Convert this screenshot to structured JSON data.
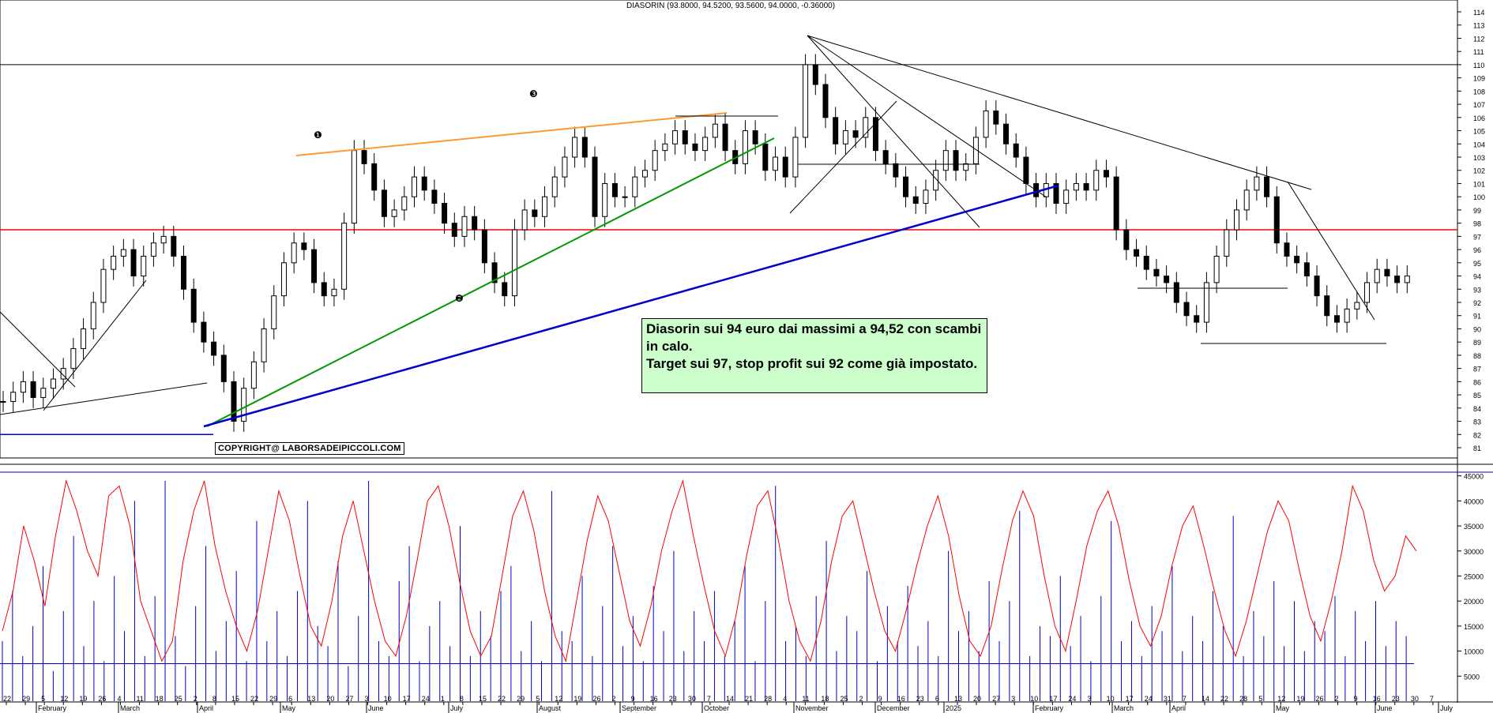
{
  "chart_data": [
    {
      "type": "candlestick",
      "title": "DIASORIN (93.8000, 94.5200, 93.5600, 94.0000, -0.36000)",
      "ylim": [
        80,
        115
      ],
      "y_ticks": [
        81,
        82,
        83,
        84,
        85,
        86,
        87,
        88,
        89,
        90,
        91,
        92,
        93,
        94,
        95,
        96,
        97,
        98,
        99,
        100,
        101,
        102,
        103,
        104,
        105,
        106,
        107,
        108,
        109,
        110,
        111,
        112,
        113,
        114
      ],
      "x_day_ticks": [
        "22",
        "29",
        "5",
        "12",
        "19",
        "26",
        "4",
        "11",
        "18",
        "25",
        "2",
        "8",
        "15",
        "22",
        "29",
        "6",
        "13",
        "20",
        "27",
        "3",
        "10",
        "17",
        "24",
        "1",
        "8",
        "15",
        "22",
        "29",
        "5",
        "12",
        "19",
        "26",
        "2",
        "9",
        "16",
        "23",
        "30",
        "7",
        "14",
        "21",
        "28",
        "4",
        "11",
        "18",
        "25",
        "2",
        "9",
        "16",
        "23",
        "6",
        "13",
        "20",
        "27",
        "3",
        "10",
        "17",
        "24",
        "3",
        "10",
        "17",
        "24",
        "31",
        "7",
        "14",
        "22",
        "28",
        "5",
        "12",
        "19",
        "26",
        "2",
        "9",
        "16",
        "23",
        "30",
        "7"
      ],
      "x_month_labels": [
        "February",
        "March",
        "April",
        "May",
        "June",
        "July",
        "August",
        "September",
        "October",
        "November",
        "December",
        "2025",
        "February",
        "March",
        "April",
        "May",
        "June",
        "July"
      ],
      "close_series": [
        84.5,
        85.2,
        86.0,
        84.8,
        85.5,
        86.2,
        87.0,
        88.5,
        90.0,
        92.0,
        94.5,
        95.5,
        96.0,
        94.0,
        95.5,
        96.5,
        97.0,
        95.5,
        93.0,
        90.5,
        89.0,
        88.0,
        86.0,
        83.0,
        85.5,
        87.5,
        90.0,
        92.5,
        95.0,
        96.5,
        96.0,
        93.5,
        92.5,
        93.0,
        98.0,
        103.5,
        102.5,
        100.5,
        98.5,
        99.0,
        100.0,
        101.5,
        100.5,
        99.5,
        98.0,
        97.0,
        98.5,
        97.5,
        95.0,
        93.5,
        92.5,
        97.5,
        99.0,
        98.5,
        100.0,
        101.5,
        103.0,
        104.5,
        103.0,
        98.5,
        101.0,
        100.0,
        100.0,
        101.5,
        102.0,
        103.5,
        104.0,
        105.0,
        104.0,
        103.5,
        104.5,
        105.5,
        103.5,
        102.5,
        105.0,
        104.0,
        102.0,
        103.0,
        101.5,
        104.5,
        110.0,
        108.5,
        106.0,
        104.0,
        105.0,
        104.5,
        106.0,
        103.5,
        102.5,
        101.5,
        100.0,
        99.5,
        100.5,
        102.0,
        103.5,
        102.0,
        102.5,
        104.5,
        106.5,
        105.5,
        104.0,
        103.0,
        101.0,
        100.0,
        101.0,
        99.5,
        100.5,
        101.0,
        100.5,
        102.0,
        101.5,
        97.5,
        96.0,
        95.5,
        94.5,
        94.0,
        93.5,
        92.0,
        91.0,
        90.5,
        93.5,
        95.5,
        97.5,
        99.0,
        100.5,
        101.5,
        100.0,
        96.5,
        95.5,
        95.0,
        94.0,
        92.5,
        91.0,
        90.5,
        91.5,
        92.0,
        93.5,
        94.5,
        94.0,
        93.5,
        94.0
      ],
      "horizontal_lines": [
        {
          "y": 110,
          "color": "#000000"
        },
        {
          "y": 97.5,
          "color": "#ff0000"
        },
        {
          "y": 82,
          "color": "#0000cc"
        }
      ],
      "markers": [
        "❶",
        "❷",
        "❸"
      ],
      "annotation": [
        "Diasorin sui 94 euro dai massimi a 94,52 con scambi",
        "in calo.",
        "Target sui 97, stop profit sui 92 come già impostato."
      ],
      "copyright": "COPYRIGHT@ LABORSADEIPICCOLI.COM"
    },
    {
      "type": "bar",
      "series": [
        {
          "kind": "bar",
          "color": "#0000cc",
          "values": [
            12000,
            22000,
            9000,
            15000,
            27000,
            6000,
            18000,
            33000,
            11000,
            20000,
            8000,
            25000,
            14000,
            40000,
            9000,
            21000,
            44000,
            13000,
            7000,
            19000,
            31000,
            10000,
            16000,
            26000,
            8000,
            36000,
            12000,
            18000,
            9000,
            22000,
            40000,
            15000,
            11000,
            28000,
            7000,
            17000,
            44000,
            12000,
            9000,
            24000,
            31000,
            8000,
            15000,
            20000,
            11000,
            35000,
            9000,
            18000,
            13000,
            22000,
            27000,
            10000,
            16000,
            8000,
            42000,
            14000,
            12000,
            25000,
            9000,
            19000,
            31000,
            11000,
            17000,
            8000,
            23000,
            14000,
            30000,
            10000,
            18000,
            12000,
            22000,
            9000,
            16000,
            27000,
            8000,
            20000,
            43000,
            12000,
            15000,
            9000,
            21000,
            32000,
            10000,
            17000,
            14000,
            26000,
            8000,
            19000,
            12000,
            23000,
            11000,
            16000,
            9000,
            30000,
            14000,
            18000,
            10000,
            24000,
            12000,
            20000,
            38000,
            9000,
            15000,
            13000,
            25000,
            11000,
            17000,
            8000,
            21000,
            36000,
            12000,
            16000,
            9000,
            19000,
            14000,
            27000,
            10000,
            17000,
            12000,
            22000,
            15000,
            37000,
            9000,
            18000,
            13000,
            24000,
            11000,
            20000,
            10000,
            16000,
            14000,
            21000,
            9000,
            18000,
            12000,
            20000,
            11000,
            16000,
            13000
          ]
        },
        {
          "kind": "line",
          "color": "#ff0000",
          "values": [
            14000,
            22000,
            35000,
            28000,
            19000,
            33000,
            44000,
            38000,
            30000,
            25000,
            41000,
            43000,
            35000,
            20000,
            14000,
            8000,
            12000,
            28000,
            38000,
            44000,
            31000,
            22000,
            15000,
            10000,
            18000,
            30000,
            42000,
            36000,
            25000,
            15000,
            11000,
            20000,
            33000,
            40000,
            30000,
            20000,
            12000,
            9000,
            17000,
            28000,
            40000,
            43000,
            35000,
            24000,
            14000,
            9000,
            13000,
            25000,
            37000,
            42000,
            34000,
            22000,
            13000,
            8000,
            20000,
            32000,
            41000,
            36000,
            26000,
            16000,
            11000,
            19000,
            30000,
            38000,
            44000,
            33000,
            23000,
            14000,
            9000,
            17000,
            29000,
            39000,
            42000,
            32000,
            20000,
            12000,
            8000,
            16000,
            28000,
            37000,
            40000,
            31000,
            22000,
            14000,
            10000,
            18000,
            27000,
            35000,
            41000,
            33000,
            21000,
            12000,
            9000,
            15000,
            26000,
            36000,
            42000,
            37000,
            25000,
            15000,
            10000,
            20000,
            31000,
            38000,
            42000,
            35000,
            24000,
            15000,
            11000,
            17000,
            27000,
            35000,
            39000,
            31000,
            22000,
            14000,
            9000,
            16000,
            25000,
            34000,
            40000,
            36000,
            26000,
            17000,
            12000,
            20000,
            30000,
            43000,
            38000,
            28000,
            22000,
            25000,
            33000,
            30000
          ]
        }
      ],
      "ylim": [
        0,
        47000
      ],
      "average_line": 7500,
      "y_ticks": [
        5000,
        10000,
        15000,
        20000,
        25000,
        30000,
        35000,
        40000,
        45000
      ]
    }
  ]
}
